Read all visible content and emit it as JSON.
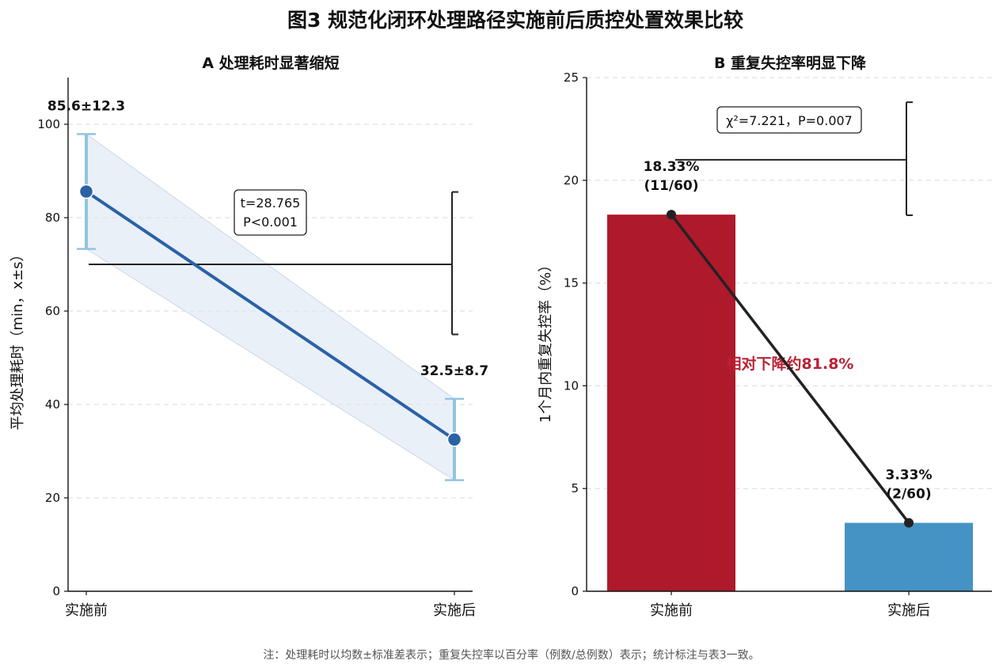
{
  "figure": {
    "title": "图3 规范化闭环处理路径实施前后质控处置效果比较",
    "note": "注：处理耗时以均数±标准差表示；重复失控率以百分率（例数/总例数）表示；统计标注与表3一致。"
  },
  "colors": {
    "line": "#2a62a8",
    "errorbar": "#93c4df",
    "band": "#dce6f2",
    "bar_before": "#ae192b",
    "bar_after": "#4593c4",
    "connector": "#222222",
    "annotation_red": "#b82234"
  },
  "chart_data": [
    {
      "panel": "A",
      "type": "line",
      "title": "A 处理耗时显著缩短",
      "ylabel": "平均处理耗时（min，x±s）",
      "xlabel": "",
      "categories": [
        "实施前",
        "实施后"
      ],
      "values": [
        85.6,
        32.5
      ],
      "sd": [
        12.3,
        8.7
      ],
      "point_labels": [
        "85.6±12.3",
        "32.5±8.7"
      ],
      "ylim": [
        0,
        110
      ],
      "yticks": [
        0,
        20,
        40,
        60,
        80,
        100
      ],
      "ytick_labels": [
        "0",
        "20",
        "40",
        "60",
        "80",
        "100"
      ],
      "grid": true,
      "stat": {
        "line1": "t=28.765",
        "line2": "P<0.001"
      },
      "bracket": {
        "y": 70,
        "y_low": 55,
        "y_high": 85.5
      }
    },
    {
      "panel": "B",
      "type": "bar",
      "title": "B 重复失控率明显下降",
      "ylabel": "1个月内重复失控率（%）",
      "xlabel": "",
      "categories": [
        "实施前",
        "实施后"
      ],
      "values": [
        18.33,
        3.33
      ],
      "value_labels": [
        [
          "18.33%",
          "(11/60)"
        ],
        [
          "3.33%",
          "(2/60)"
        ]
      ],
      "ylim": [
        0,
        25
      ],
      "yticks": [
        0,
        5,
        10,
        15,
        20,
        25
      ],
      "ytick_labels": [
        "0",
        "5",
        "10",
        "15",
        "20",
        "25"
      ],
      "grid": true,
      "stat": {
        "label": "χ²=7.221，P=0.007"
      },
      "bracket": {
        "y": 21,
        "y_low": 18.3,
        "y_high": 23.8
      },
      "annotation": "相对下降约81.8%"
    }
  ]
}
